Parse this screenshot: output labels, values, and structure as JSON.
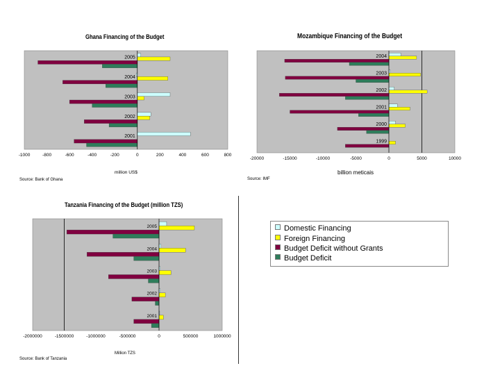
{
  "colors": {
    "plot_bg": "#c0c0c0",
    "domestic": "#ccffff",
    "foreign": "#ffff00",
    "deficit_no_grants": "#800040",
    "deficit": "#2e7d5b"
  },
  "legend": {
    "items": [
      {
        "label": "Domestic Financing",
        "color": "#ccffff"
      },
      {
        "label": "Foreign Financing",
        "color": "#ffff00"
      },
      {
        "label": "Budget Deficit without Grants",
        "color": "#800040"
      },
      {
        "label": "Budget Deficit",
        "color": "#2e7d5b"
      }
    ]
  },
  "chart_data": [
    {
      "id": "ghana",
      "type": "bar",
      "orientation": "horizontal",
      "title": "Ghana Financing of the Budget",
      "xlabel": "million US$",
      "source": "Source: Bank of Ghana",
      "xlim": [
        -1000,
        800
      ],
      "xticks": [
        "-1000",
        "-800",
        "-600",
        "-400",
        "-200",
        "0",
        "200",
        "400",
        "600",
        "800"
      ],
      "categories": [
        "2005",
        "2004",
        "2003",
        "2002",
        "2001"
      ],
      "series": [
        {
          "name": "Domestic Financing",
          "values": [
            30,
            -10,
            290,
            120,
            470
          ]
        },
        {
          "name": "Foreign Financing",
          "values": [
            290,
            270,
            60,
            110,
            0
          ]
        },
        {
          "name": "Budget Deficit without Grants",
          "values": [
            -880,
            -660,
            -600,
            -470,
            -560
          ]
        },
        {
          "name": "Budget Deficit",
          "values": [
            -310,
            -280,
            -400,
            -250,
            -450
          ]
        }
      ]
    },
    {
      "id": "mozambique",
      "type": "bar",
      "orientation": "horizontal",
      "title": "Mozambique Financing of the Budget",
      "xlabel": "billion meticais",
      "source": "Source: IMF",
      "xlim": [
        -20000,
        10000
      ],
      "xticks": [
        "-20000",
        "-15000",
        "-10000",
        "-5000",
        "0",
        "5000",
        "10000"
      ],
      "categories": [
        "2004",
        "2003",
        "2002",
        "2001",
        "2000",
        "1999"
      ],
      "series": [
        {
          "name": "Domestic Financing",
          "values": [
            1800,
            200,
            800,
            1300,
            1000,
            0
          ]
        },
        {
          "name": "Foreign Financing",
          "values": [
            4200,
            4800,
            5800,
            3200,
            2500,
            1000
          ]
        },
        {
          "name": "Budget Deficit without Grants",
          "values": [
            -15800,
            -15700,
            -16600,
            -15000,
            -7800,
            -6600
          ]
        },
        {
          "name": "Budget Deficit",
          "values": [
            -6000,
            -5000,
            -6600,
            -4600,
            -3400,
            0
          ]
        }
      ]
    },
    {
      "id": "tanzania",
      "type": "bar",
      "orientation": "horizontal",
      "title": "Tanzania Financing of the Budget (million TZS)",
      "xlabel": "Million TZS",
      "source": "Source: Bank of Tanzania",
      "xlim": [
        -2000000,
        1000000
      ],
      "xticks": [
        "-2000000",
        "-1500000",
        "-1000000",
        "-500000",
        "0",
        "500000",
        "1000000"
      ],
      "categories": [
        "2005",
        "2004",
        "2003",
        "2002",
        "2001"
      ],
      "series": [
        {
          "name": "Domestic Financing",
          "values": [
            120000,
            30000,
            20000,
            20000,
            10000
          ]
        },
        {
          "name": "Foreign Financing",
          "values": [
            560000,
            420000,
            190000,
            100000,
            70000
          ]
        },
        {
          "name": "Budget Deficit without Grants",
          "values": [
            -1460000,
            -1140000,
            -800000,
            -430000,
            -400000
          ]
        },
        {
          "name": "Budget Deficit",
          "values": [
            -730000,
            -400000,
            -170000,
            -60000,
            -120000
          ]
        }
      ]
    }
  ]
}
